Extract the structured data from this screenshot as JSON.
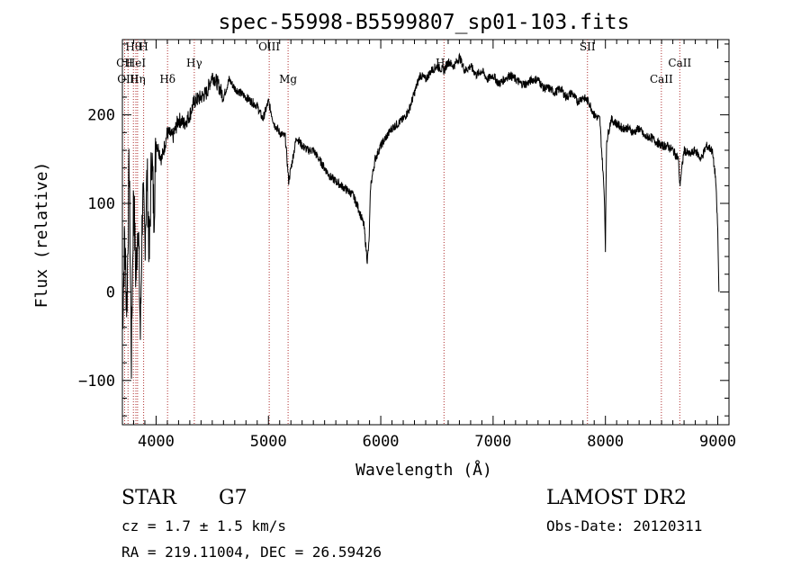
{
  "chart_data": {
    "type": "line",
    "title": "spec-55998-B5599807_sp01-103.fits",
    "xlabel": "Wavelength (Å)",
    "ylabel": "Flux (relative)",
    "xlim": [
      3700,
      9100
    ],
    "ylim": [
      -150,
      285
    ],
    "x_ticks": [
      4000,
      5000,
      6000,
      7000,
      8000,
      9000
    ],
    "y_ticks": [
      -100,
      0,
      100,
      200
    ],
    "x_tick_labels": [
      "4000",
      "5000",
      "6000",
      "7000",
      "8000",
      "9000"
    ],
    "y_tick_labels": [
      "−100",
      "0",
      "100",
      "200"
    ],
    "grid": false,
    "legend": "none",
    "line_color": "#000000",
    "marker_color": "#b03030",
    "spectrum": {
      "x": [
        3700,
        3720,
        3740,
        3760,
        3780,
        3800,
        3820,
        3840,
        3860,
        3880,
        3900,
        3920,
        3940,
        3960,
        3980,
        4000,
        4050,
        4100,
        4150,
        4200,
        4250,
        4300,
        4340,
        4400,
        4450,
        4500,
        4550,
        4600,
        4650,
        4700,
        4750,
        4800,
        4850,
        4900,
        4950,
        5000,
        5050,
        5100,
        5150,
        5180,
        5250,
        5300,
        5350,
        5400,
        5450,
        5500,
        5550,
        5600,
        5650,
        5700,
        5750,
        5800,
        5850,
        5880,
        5895,
        5910,
        5950,
        6000,
        6050,
        6100,
        6150,
        6200,
        6250,
        6300,
        6350,
        6400,
        6450,
        6500,
        6563,
        6600,
        6650,
        6700,
        6750,
        6800,
        6850,
        6900,
        6950,
        7000,
        7050,
        7100,
        7150,
        7200,
        7250,
        7300,
        7350,
        7400,
        7450,
        7500,
        7550,
        7600,
        7650,
        7700,
        7750,
        7800,
        7850,
        7900,
        7950,
        7990,
        8000,
        8010,
        8050,
        8100,
        8150,
        8200,
        8250,
        8300,
        8350,
        8400,
        8450,
        8500,
        8550,
        8600,
        8650,
        8662,
        8700,
        8750,
        8800,
        8850,
        8900,
        8950,
        8980,
        9000,
        9010
      ],
      "y": [
        -40,
        60,
        -20,
        150,
        -75,
        120,
        10,
        90,
        -50,
        110,
        60,
        130,
        40,
        160,
        90,
        170,
        150,
        180,
        175,
        195,
        190,
        200,
        215,
        220,
        225,
        245,
        235,
        220,
        240,
        230,
        225,
        220,
        215,
        210,
        195,
        215,
        190,
        180,
        175,
        125,
        175,
        165,
        160,
        160,
        150,
        140,
        130,
        125,
        120,
        115,
        110,
        95,
        75,
        35,
        55,
        120,
        150,
        165,
        175,
        185,
        190,
        195,
        205,
        225,
        245,
        240,
        250,
        255,
        250,
        260,
        255,
        265,
        250,
        255,
        245,
        250,
        240,
        245,
        235,
        240,
        245,
        240,
        235,
        235,
        240,
        240,
        230,
        230,
        225,
        230,
        220,
        225,
        215,
        220,
        215,
        200,
        195,
        110,
        50,
        170,
        195,
        190,
        185,
        185,
        180,
        185,
        175,
        175,
        170,
        165,
        165,
        160,
        150,
        120,
        160,
        155,
        160,
        150,
        165,
        160,
        130,
        70,
        0
      ]
    },
    "lines": [
      {
        "label": "Hθ",
        "x": 3798
      },
      {
        "label": "H",
        "x": 3889
      },
      {
        "label": "CII",
        "x": 3720
      },
      {
        "label": "HeI",
        "x": 3820
      },
      {
        "label": "OIII",
        "x": 3750
      },
      {
        "label": "Hη",
        "x": 3835
      },
      {
        "label": "Hδ",
        "x": 4102
      },
      {
        "label": "Hγ",
        "x": 4340
      },
      {
        "label": "OIII",
        "x": 5007
      },
      {
        "label": "Mg",
        "x": 5175
      },
      {
        "label": "Hα",
        "x": 6563
      },
      {
        "label": "SII",
        "x": 7840
      },
      {
        "label": "CaII",
        "x": 8498
      },
      {
        "label": "CaII",
        "x": 8662
      }
    ]
  },
  "info": {
    "class_label": "STAR",
    "subclass_label": "G7",
    "survey": "LAMOST DR2",
    "cz": "cz = 1.7 ± 1.5 km/s",
    "obs_date": "Obs-Date: 20120311",
    "radec": "RA = 219.11004, DEC =  26.59426"
  }
}
